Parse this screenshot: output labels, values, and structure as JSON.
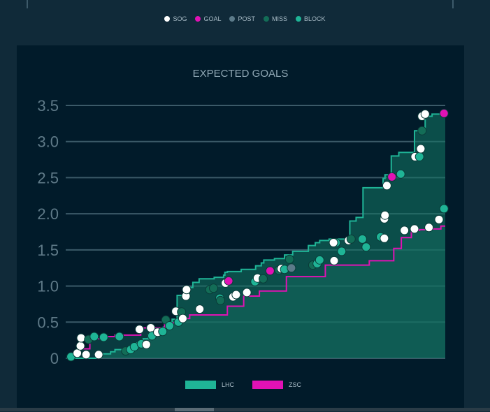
{
  "legend_top": [
    {
      "label": "SOG",
      "color": "#ffffff"
    },
    {
      "label": "GOAL",
      "color": "#e012b4"
    },
    {
      "label": "POST",
      "color": "#5c7b8a"
    },
    {
      "label": "MISS",
      "color": "#136d57"
    },
    {
      "label": "BLOCK",
      "color": "#1fb496"
    }
  ],
  "chart_data": {
    "type": "line",
    "title": "EXPECTED GOALS",
    "xlabel": "",
    "ylabel": "",
    "ylim": [
      0,
      3.5
    ],
    "yticks": [
      "0",
      "0.5",
      "1.0",
      "1.5",
      "2.0",
      "2.5",
      "3.0",
      "3.5"
    ],
    "xlim": [
      0,
      60
    ],
    "grid": true,
    "legend_position": "bottom",
    "series": [
      {
        "name": "LHC",
        "color": "#1fb496",
        "x": [
          0,
          4.4,
          4.6,
          5.3,
          6.7,
          7.4,
          9.3,
          10.5,
          10.9,
          11.9,
          12.7,
          13.6,
          14.3,
          15.1,
          15.7,
          16.5,
          17.3,
          18.5,
          19.2,
          19.8,
          20.8,
          23.2,
          24.7,
          24.9,
          25.3,
          27.5,
          29.8,
          30.7,
          31.1,
          32.8,
          34.4,
          35.7,
          38.2,
          39.3,
          40.0,
          41.5,
          44.7,
          44.8,
          45.8,
          46.9,
          50.1,
          50.4,
          51.4,
          52.6,
          55.1,
          56.8,
          57.9,
          59.7
        ],
        "y": [
          0,
          0.01,
          0.04,
          0.06,
          0.09,
          0.12,
          0.15,
          0.18,
          0.21,
          0.27,
          0.33,
          0.36,
          0.39,
          0.43,
          0.48,
          0.54,
          0.87,
          0.94,
          0.98,
          1.05,
          1.1,
          1.12,
          1.15,
          1.19,
          1.2,
          1.23,
          1.28,
          1.32,
          1.36,
          1.38,
          1.43,
          1.48,
          1.56,
          1.6,
          1.63,
          1.65,
          1.69,
          1.9,
          1.95,
          2.36,
          2.49,
          2.54,
          2.8,
          2.85,
          3.15,
          3.35,
          3.38,
          3.39
        ],
        "color_final": "#1fb496"
      },
      {
        "name": "ZSC",
        "color": "#e012b4",
        "x": [
          0,
          0.8,
          1.6,
          3.4,
          6.0,
          7.4,
          11.5,
          15.3,
          17.7,
          19.3,
          25.3,
          27.9,
          30.4,
          34.7,
          40.9,
          47.9,
          51.8,
          53.0,
          54.6,
          55.9,
          57.6,
          59.3
        ],
        "y": [
          0,
          0.05,
          0.13,
          0.27,
          0.3,
          0.32,
          0.42,
          0.49,
          0.55,
          0.6,
          0.72,
          0.86,
          0.93,
          1.13,
          1.29,
          1.35,
          1.52,
          1.67,
          1.77,
          1.78,
          1.79,
          1.83
        ]
      }
    ],
    "shots": [
      {
        "team": "ZSC",
        "type": "BLOCK",
        "x": 0.4,
        "y": 0.02
      },
      {
        "team": "ZSC",
        "type": "SOG",
        "x": 1.4,
        "y": 0.07
      },
      {
        "team": "ZSC",
        "type": "SOG",
        "x": 1.9,
        "y": 0.17
      },
      {
        "team": "ZSC",
        "type": "SOG",
        "x": 2.0,
        "y": 0.28
      },
      {
        "team": "ZSC",
        "type": "SOG",
        "x": 2.8,
        "y": 0.05
      },
      {
        "team": "ZSC",
        "type": "MISS",
        "x": 3.2,
        "y": 0.26
      },
      {
        "team": "ZSC",
        "type": "BLOCK",
        "x": 4.1,
        "y": 0.3
      },
      {
        "team": "LHC",
        "type": "SOG",
        "x": 4.8,
        "y": 0.05
      },
      {
        "team": "ZSC",
        "type": "BLOCK",
        "x": 5.6,
        "y": 0.29
      },
      {
        "team": "ZSC",
        "type": "BLOCK",
        "x": 8.1,
        "y": 0.3
      },
      {
        "team": "LHC",
        "type": "MISS",
        "x": 9.1,
        "y": 0.1
      },
      {
        "team": "LHC",
        "type": "BLOCK",
        "x": 9.9,
        "y": 0.12
      },
      {
        "team": "LHC",
        "type": "BLOCK",
        "x": 10.5,
        "y": 0.16
      },
      {
        "team": "ZSC",
        "type": "SOG",
        "x": 11.3,
        "y": 0.4
      },
      {
        "team": "LHC",
        "type": "BLOCK",
        "x": 11.6,
        "y": 0.2
      },
      {
        "team": "LHC",
        "type": "SOG",
        "x": 12.4,
        "y": 0.19
      },
      {
        "team": "ZSC",
        "type": "SOG",
        "x": 13.1,
        "y": 0.42
      },
      {
        "team": "LHC",
        "type": "BLOCK",
        "x": 13.3,
        "y": 0.31
      },
      {
        "team": "LHC",
        "type": "SOG",
        "x": 14.2,
        "y": 0.36
      },
      {
        "team": "LHC",
        "type": "BLOCK",
        "x": 15.0,
        "y": 0.37
      },
      {
        "team": "LHC",
        "type": "MISS",
        "x": 15.5,
        "y": 0.53
      },
      {
        "team": "LHC",
        "type": "BLOCK",
        "x": 16.1,
        "y": 0.45
      },
      {
        "team": "LHC",
        "type": "SOG",
        "x": 17.1,
        "y": 0.65
      },
      {
        "team": "LHC",
        "type": "BLOCK",
        "x": 17.5,
        "y": 0.5
      },
      {
        "team": "LHC",
        "type": "MISS",
        "x": 18.0,
        "y": 0.64
      },
      {
        "team": "LHC",
        "type": "SOG",
        "x": 18.2,
        "y": 0.55
      },
      {
        "team": "LHC",
        "type": "SOG",
        "x": 18.7,
        "y": 0.86
      },
      {
        "team": "LHC",
        "type": "SOG",
        "x": 18.8,
        "y": 0.95
      },
      {
        "team": "ZSC",
        "type": "SOG",
        "x": 20.9,
        "y": 0.68
      },
      {
        "team": "LHC",
        "type": "MISS",
        "x": 22.5,
        "y": 0.95
      },
      {
        "team": "LHC",
        "type": "MISS",
        "x": 23.1,
        "y": 0.97
      },
      {
        "team": "LHC",
        "type": "BLOCK",
        "x": 24.1,
        "y": 0.83
      },
      {
        "team": "LHC",
        "type": "MISS",
        "x": 24.2,
        "y": 0.8
      },
      {
        "team": "LHC",
        "type": "SOG",
        "x": 25.0,
        "y": 1.04
      },
      {
        "team": "ZSC",
        "type": "GOAL",
        "x": 25.5,
        "y": 1.07
      },
      {
        "team": "LHC",
        "type": "SOG",
        "x": 26.2,
        "y": 0.85
      },
      {
        "team": "LHC",
        "type": "SOG",
        "x": 26.7,
        "y": 0.88
      },
      {
        "team": "LHC",
        "type": "SOG",
        "x": 28.4,
        "y": 0.91
      },
      {
        "team": "LHC",
        "type": "BLOCK",
        "x": 29.7,
        "y": 1.06
      },
      {
        "team": "LHC",
        "type": "SOG",
        "x": 30.1,
        "y": 1.11
      },
      {
        "team": "LHC",
        "type": "MISS",
        "x": 31.0,
        "y": 1.1
      },
      {
        "team": "ZSC",
        "type": "GOAL",
        "x": 32.1,
        "y": 1.21
      },
      {
        "team": "LHC",
        "type": "MISS",
        "x": 33.5,
        "y": 1.22
      },
      {
        "team": "LHC",
        "type": "SOG",
        "x": 33.9,
        "y": 1.24
      },
      {
        "team": "LHC",
        "type": "BLOCK",
        "x": 34.4,
        "y": 1.23
      },
      {
        "team": "LHC",
        "type": "MISS",
        "x": 35.2,
        "y": 1.37
      },
      {
        "team": "LHC",
        "type": "POST",
        "x": 35.5,
        "y": 1.25
      },
      {
        "team": "LHC",
        "type": "MISS",
        "x": 38.9,
        "y": 1.29
      },
      {
        "team": "LHC",
        "type": "BLOCK",
        "x": 39.6,
        "y": 1.31
      },
      {
        "team": "LHC",
        "type": "BLOCK",
        "x": 40.0,
        "y": 1.36
      },
      {
        "team": "LHC",
        "type": "SOG",
        "x": 42.3,
        "y": 1.35
      },
      {
        "team": "LHC",
        "type": "BLOCK",
        "x": 42.6,
        "y": 1.6
      },
      {
        "team": "LHC",
        "type": "SOG",
        "x": 42.2,
        "y": 1.6
      },
      {
        "team": "LHC",
        "type": "BLOCK",
        "x": 43.5,
        "y": 1.48
      },
      {
        "team": "LHC",
        "type": "SOG",
        "x": 44.6,
        "y": 1.63
      },
      {
        "team": "LHC",
        "type": "MISS",
        "x": 45.0,
        "y": 1.65
      },
      {
        "team": "LHC",
        "type": "BLOCK",
        "x": 46.8,
        "y": 1.65
      },
      {
        "team": "LHC",
        "type": "BLOCK",
        "x": 47.4,
        "y": 1.54
      },
      {
        "team": "LHC",
        "type": "BLOCK",
        "x": 49.7,
        "y": 1.68
      },
      {
        "team": "LHC",
        "type": "SOG",
        "x": 50.3,
        "y": 1.66
      },
      {
        "team": "LHC",
        "type": "SOG",
        "x": 50.3,
        "y": 1.93
      },
      {
        "team": "LHC",
        "type": "SOG",
        "x": 50.4,
        "y": 1.98
      },
      {
        "team": "LHC",
        "type": "SOG",
        "x": 50.7,
        "y": 2.39
      },
      {
        "team": "LHC",
        "type": "GOAL",
        "x": 51.5,
        "y": 2.51
      },
      {
        "team": "LHC",
        "type": "BLOCK",
        "x": 52.9,
        "y": 2.55
      },
      {
        "team": "ZSC",
        "type": "SOG",
        "x": 53.5,
        "y": 1.77
      },
      {
        "team": "ZSC",
        "type": "SOG",
        "x": 55.1,
        "y": 1.79
      },
      {
        "team": "LHC",
        "type": "SOG",
        "x": 55.2,
        "y": 2.79
      },
      {
        "team": "LHC",
        "type": "BLOCK",
        "x": 55.9,
        "y": 2.79
      },
      {
        "team": "LHC",
        "type": "SOG",
        "x": 56.1,
        "y": 2.9
      },
      {
        "team": "LHC",
        "type": "MISS",
        "x": 56.3,
        "y": 3.15
      },
      {
        "team": "LHC",
        "type": "SOG",
        "x": 56.3,
        "y": 3.35
      },
      {
        "team": "LHC",
        "type": "SOG",
        "x": 56.8,
        "y": 3.38
      },
      {
        "team": "ZSC",
        "type": "SOG",
        "x": 57.4,
        "y": 1.81
      },
      {
        "team": "ZSC",
        "type": "SOG",
        "x": 59.0,
        "y": 1.92
      },
      {
        "team": "ZSC",
        "type": "BLOCK",
        "x": 59.8,
        "y": 2.07
      },
      {
        "team": "LHC",
        "type": "GOAL",
        "x": 59.8,
        "y": 3.39
      }
    ],
    "legend": [
      {
        "label": "LHC",
        "color": "#1fb496"
      },
      {
        "label": "ZSC",
        "color": "#e012b4"
      }
    ]
  }
}
